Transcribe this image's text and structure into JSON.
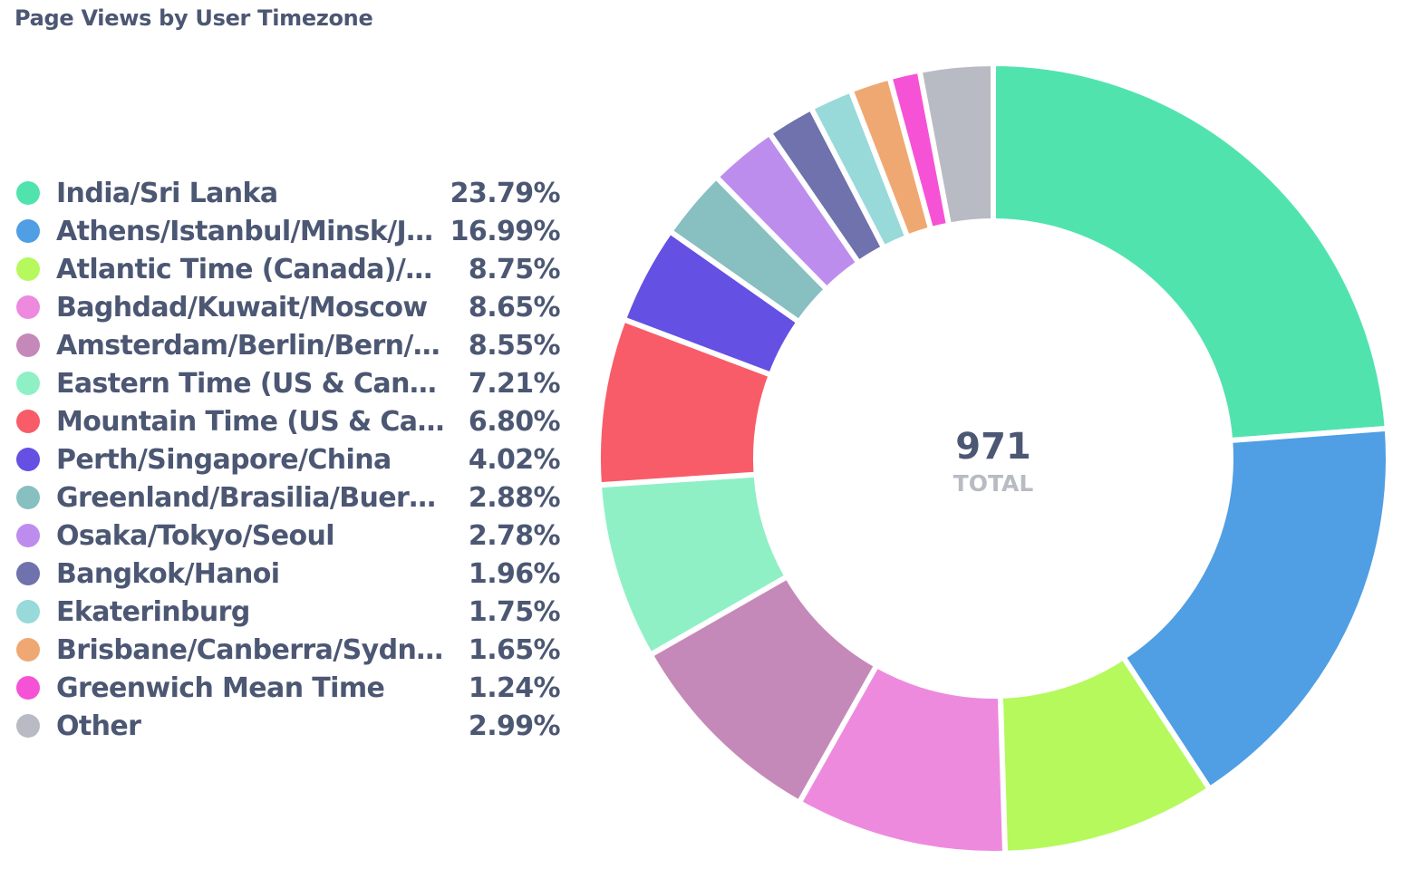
{
  "chart_data": {
    "type": "pie",
    "title": "Page Views by User Timezone",
    "total_value": "971",
    "total_label": "TOTAL",
    "series": [
      {
        "name": "India/Sri Lanka",
        "display": "India/Sri Lanka",
        "percent": 23.79,
        "percent_label": "23.79%",
        "color": "#51e3ae"
      },
      {
        "name": "Athens/Istanbul/Minsk/J…",
        "display": "Athens/Istanbul/Minsk/J…",
        "percent": 16.99,
        "percent_label": "16.99%",
        "color": "#509ee3"
      },
      {
        "name": "Atlantic Time (Canada)/Ca…",
        "display": "Atlantic Time (Canada)/Ca…",
        "percent": 8.75,
        "percent_label": "8.75%",
        "color": "#b5f95c"
      },
      {
        "name": "Baghdad/Kuwait/Moscow",
        "display": "Baghdad/Kuwait/Moscow",
        "percent": 8.65,
        "percent_label": "8.65%",
        "color": "#ed8ade"
      },
      {
        "name": "Amsterdam/Berlin/Bern/R…",
        "display": "Amsterdam/Berlin/Bern/R…",
        "percent": 8.55,
        "percent_label": "8.55%",
        "color": "#c589b9"
      },
      {
        "name": "Eastern Time (US & Canad…",
        "display": "Eastern Time (US & Canad…",
        "percent": 7.21,
        "percent_label": "7.21%",
        "color": "#8ff0c6"
      },
      {
        "name": "Mountain Time (US & Cana…",
        "display": "Mountain Time (US & Cana…",
        "percent": 6.8,
        "percent_label": "6.80%",
        "color": "#f85c68"
      },
      {
        "name": "Perth/Singapore/China",
        "display": "Perth/Singapore/China",
        "percent": 4.02,
        "percent_label": "4.02%",
        "color": "#6450e3"
      },
      {
        "name": "Greenland/Brasilia/Buern…",
        "display": "Greenland/Brasilia/Buern…",
        "percent": 2.88,
        "percent_label": "2.88%",
        "color": "#88bfc1"
      },
      {
        "name": "Osaka/Tokyo/Seoul",
        "display": "Osaka/Tokyo/Seoul",
        "percent": 2.78,
        "percent_label": "2.78%",
        "color": "#bd8ded"
      },
      {
        "name": "Bangkok/Hanoi",
        "display": "Bangkok/Hanoi",
        "percent": 1.96,
        "percent_label": "1.96%",
        "color": "#6f72ad"
      },
      {
        "name": "Ekaterinburg",
        "display": "Ekaterinburg",
        "percent": 1.75,
        "percent_label": "1.75%",
        "color": "#98d9d9"
      },
      {
        "name": "Brisbane/Canberra/Sydne…",
        "display": "Brisbane/Canberra/Sydne…",
        "percent": 1.65,
        "percent_label": "1.65%",
        "color": "#f0a872"
      },
      {
        "name": "Greenwich Mean Time",
        "display": "Greenwich Mean Time",
        "percent": 1.24,
        "percent_label": "1.24%",
        "color": "#f652d6"
      },
      {
        "name": "Other",
        "display": "Other",
        "percent": 2.99,
        "percent_label": "2.99%",
        "color": "#b8bbc3"
      }
    ]
  }
}
